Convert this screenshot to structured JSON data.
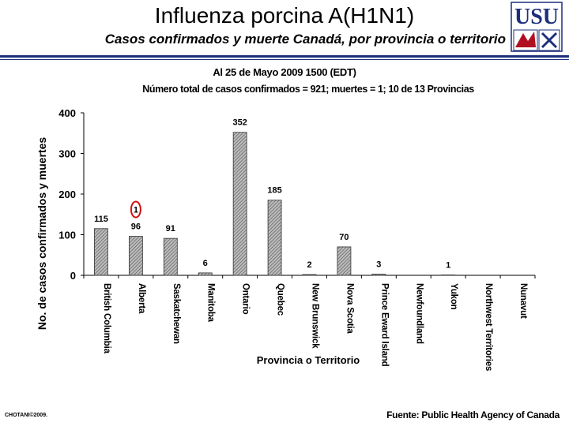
{
  "title": "Influenza porcina A(H1N1)",
  "subtitle": "Casos confirmados y muerte Canadá, por provincia o territorio",
  "as_of": "Al 25 de Mayo 2009 1500 (EDT)",
  "summary": "Número total de casos confirmados = 921; muertes = 1; 10 de 13 Provincias",
  "logo_text": "USU",
  "footer_left": "CHOTANI©2009.",
  "footer_right": "Fuente: Public Health Agency of Canada",
  "colors": {
    "rule": "#1d2f7a",
    "bar_fill": "#8c8c8c",
    "death_marker": "#d01010",
    "logo_blue": "#1d2f7a",
    "logo_red": "#b01020"
  },
  "chart_data": {
    "type": "bar",
    "xlabel": "Provincia o Territorio",
    "ylabel": "No. de casos confirmados y muertes",
    "ylim": [
      0,
      400
    ],
    "yticks": [
      "0",
      "100",
      "200",
      "300",
      "400"
    ],
    "grid": false,
    "categories": [
      "British Columbia",
      "Alberta",
      "Saskatchewan",
      "Manitoba",
      "Ontario",
      "Quebec",
      "New Brunswick",
      "Nova Scotia",
      "Prince Eward Island",
      "Newfoundland",
      "Yukon",
      "Northwest Territories",
      "Nunavut"
    ],
    "series": [
      {
        "values": [
          115,
          96,
          91,
          6,
          352,
          185,
          2,
          70,
          3,
          0,
          1,
          0,
          0
        ],
        "labels": [
          "115",
          "96",
          "91",
          "6",
          "352",
          "185",
          "2",
          "70",
          "3",
          "",
          "1",
          "",
          ""
        ]
      }
    ],
    "annotations": [
      {
        "category": "Alberta",
        "text": "1",
        "note": "muertes",
        "style": "red-circle"
      }
    ]
  }
}
